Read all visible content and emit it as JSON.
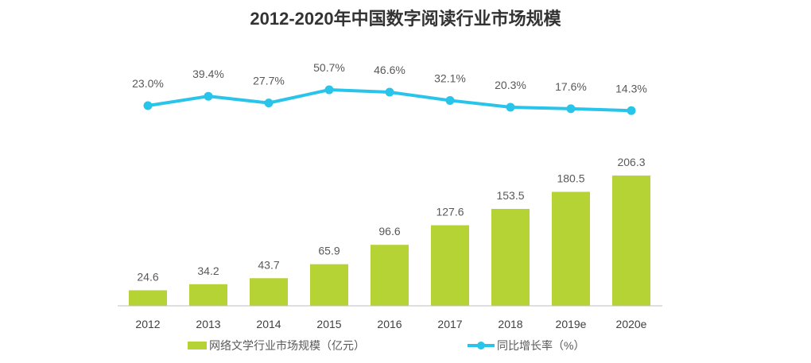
{
  "chart_data": {
    "type": "bar+line",
    "title": "2012-2020年中国数字阅读行业市场规模",
    "categories": [
      "2012",
      "2013",
      "2014",
      "2015",
      "2016",
      "2017",
      "2018",
      "2019e",
      "2020e"
    ],
    "series": [
      {
        "name": "网络文学行业市场规模（亿元）",
        "type": "bar",
        "color": "#b5d334",
        "values": [
          24.6,
          34.2,
          43.7,
          65.9,
          96.6,
          127.6,
          153.5,
          180.5,
          206.3
        ]
      },
      {
        "name": "同比增长率（%）",
        "type": "line",
        "color": "#29c4ea",
        "values": [
          23.0,
          39.4,
          27.7,
          50.7,
          46.6,
          32.1,
          20.3,
          17.6,
          14.3
        ],
        "labels": [
          "23.0%",
          "39.4%",
          "27.7%",
          "50.7%",
          "46.6%",
          "32.1%",
          "20.3%",
          "17.6%",
          "14.3%"
        ]
      }
    ],
    "legend": "bottom",
    "grid": false
  }
}
